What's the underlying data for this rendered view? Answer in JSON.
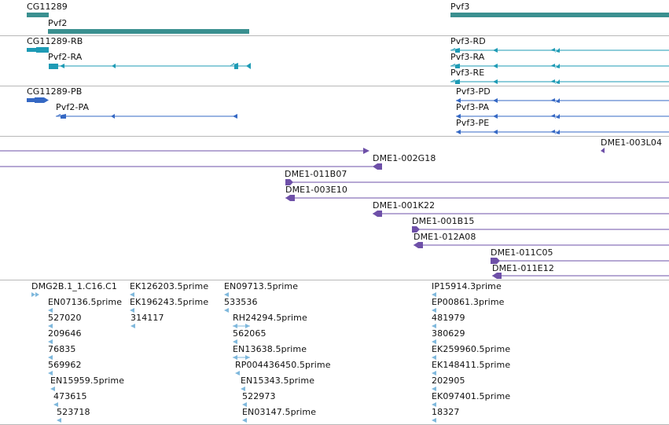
{
  "colors": {
    "gene": "#3a9090",
    "mrna": "#1e9bb5",
    "protein": "#3568c4",
    "clone": "#6e50a8",
    "est": "#7fb8dc",
    "separator": "#b8b8b8"
  },
  "tracks": {
    "genes": {
      "labels": [
        "CG11289",
        "Pvf2",
        "Pvf3"
      ]
    },
    "mrna": {
      "labels": [
        "CG11289-RB",
        "Pvf2-RA",
        "Pvf3-RD",
        "Pvf3-RA",
        "Pvf3-RE"
      ]
    },
    "proteins": {
      "labels": [
        "CG11289-PB",
        "Pvf2-PA",
        "Pvf3-PD",
        "Pvf3-PA",
        "Pvf3-PE"
      ]
    },
    "clones": {
      "labels": [
        "DME1-003L04",
        "DME1-002G18",
        "DME1-011B07",
        "DME1-003E10",
        "DME1-001K22",
        "DME1-001B15",
        "DME1-012A08",
        "DME1-011C05",
        "DME1-011E12"
      ]
    },
    "ests": {
      "col1": [
        "DMG2B.1_1.C16.C1",
        "EN07136.5prime",
        "527020",
        "209646",
        "76835",
        "569962",
        "EN15959.5prime",
        "473615",
        "523718"
      ],
      "col2": [
        "EK126203.5prime",
        "EK196243.5prime",
        "314117"
      ],
      "col3": [
        "EN09713.5prime",
        "533536",
        "RH24294.5prime",
        "562065",
        "EN13638.5prime",
        "RP004436450.5prime",
        "EN15343.5prime",
        "522973",
        "EN03147.5prime"
      ],
      "col4": [
        "IP15914.3prime",
        "EP00861.3prime",
        "481979",
        "380629",
        "EK259960.5prime",
        "EK148411.5prime",
        "202905",
        "EK097401.5prime",
        "18327"
      ]
    }
  }
}
